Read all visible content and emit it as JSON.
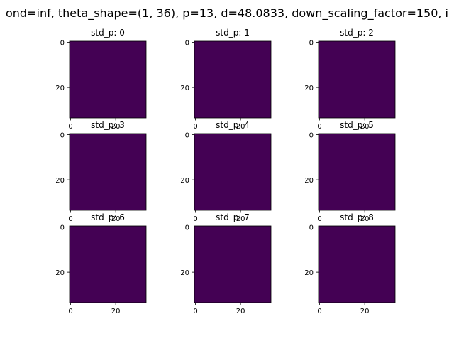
{
  "chart_data": {
    "type": "heatmap",
    "suptitle": "ond=inf, theta_shape=(1, 36), p=13, d=48.0833, down_scaling_factor=150, i",
    "colors": {
      "cell": "#440154",
      "frame": "#000000"
    },
    "panels": [
      {
        "title": "std_p: 0",
        "x_ticks": [
          "0",
          "20"
        ],
        "y_ticks": [
          "0",
          "20"
        ],
        "value": 0
      },
      {
        "title": "std_p: 1",
        "x_ticks": [
          "0",
          "20"
        ],
        "y_ticks": [
          "0",
          "20"
        ],
        "value": 0
      },
      {
        "title": "std_p: 2",
        "x_ticks": [
          "0",
          "20"
        ],
        "y_ticks": [
          "0",
          "20"
        ],
        "value": 0
      },
      {
        "title": "std_p: 3",
        "x_ticks": [
          "0",
          "20"
        ],
        "y_ticks": [
          "0",
          "20"
        ],
        "value": 0
      },
      {
        "title": "std_p: 4",
        "x_ticks": [
          "0",
          "20"
        ],
        "y_ticks": [
          "0",
          "20"
        ],
        "value": 0
      },
      {
        "title": "std_p: 5",
        "x_ticks": [
          "0",
          "20"
        ],
        "y_ticks": [
          "0",
          "20"
        ],
        "value": 0
      },
      {
        "title": "std_p: 6",
        "x_ticks": [
          "0",
          "20"
        ],
        "y_ticks": [
          "0",
          "20"
        ],
        "value": 0
      },
      {
        "title": "std_p: 7",
        "x_ticks": [
          "0",
          "20"
        ],
        "y_ticks": [
          "0",
          "20"
        ],
        "value": 0
      },
      {
        "title": "std_p: 8",
        "x_ticks": [
          "0",
          "20"
        ],
        "y_ticks": [
          "0",
          "20"
        ],
        "value": 0
      }
    ],
    "xlim": [
      -0.5,
      33.5
    ],
    "ylim": [
      33.5,
      -0.5
    ],
    "x_tick_values": [
      0,
      20
    ],
    "y_tick_values": [
      0,
      20
    ]
  }
}
